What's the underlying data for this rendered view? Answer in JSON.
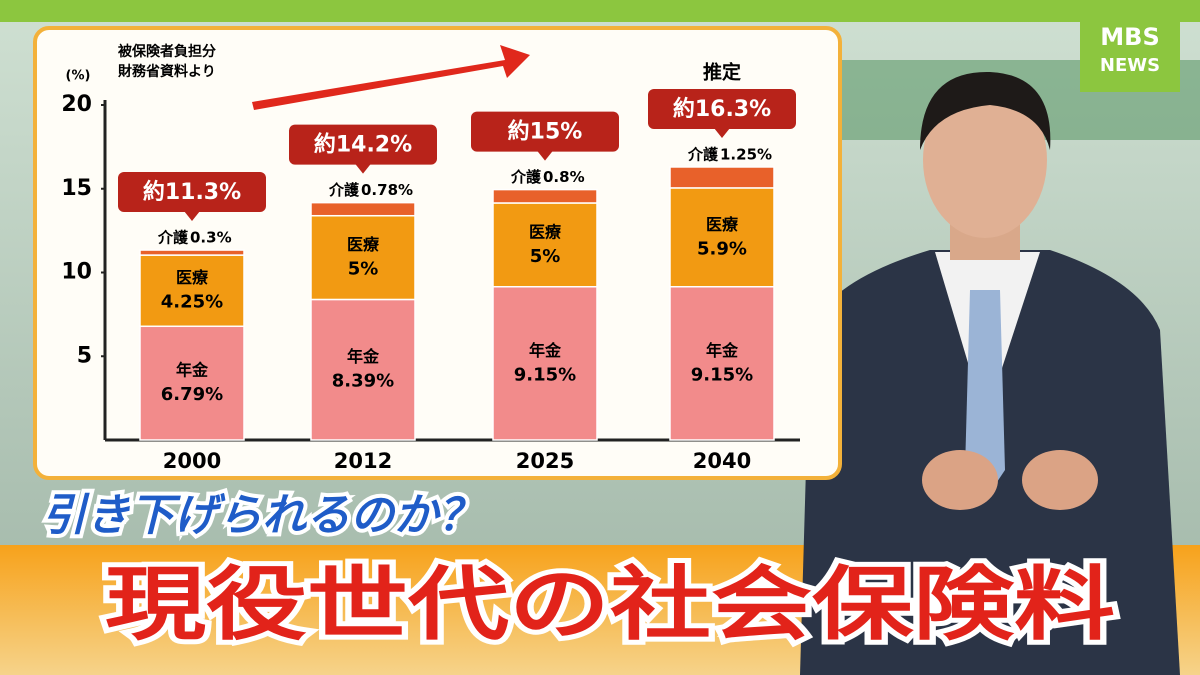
{
  "logo": {
    "brand": "MBS",
    "sub": "NEWS"
  },
  "chart_data": {
    "type": "stacked_bar",
    "unit_label": "(%)",
    "note": [
      "被保険者負担分",
      "財務省資料より"
    ],
    "categories": [
      "2000",
      "2012",
      "2025",
      "2040"
    ],
    "series": [
      {
        "name": "年金",
        "color": "#f28b8b",
        "values": [
          6.79,
          8.39,
          9.15,
          9.15
        ],
        "value_labels": [
          "6.79%",
          "8.39%",
          "9.15%",
          "9.15%"
        ]
      },
      {
        "name": "医療",
        "color": "#f29a12",
        "values": [
          4.25,
          5,
          5,
          5.9
        ],
        "value_labels": [
          "4.25%",
          "5%",
          "5%",
          "5.9%"
        ]
      },
      {
        "name": "介護",
        "color": "#e8612a",
        "values": [
          0.3,
          0.78,
          0.8,
          1.25
        ],
        "value_labels": [
          "0.3%",
          "0.78%",
          "0.8%",
          "1.25%"
        ]
      }
    ],
    "total_labels": [
      "約11.3%",
      "約14.2%",
      "約15%",
      "約16.3%"
    ],
    "estimate_label": "推定",
    "ylim": [
      0,
      20
    ],
    "yticks": [
      5,
      10,
      15,
      20
    ]
  },
  "headline": {
    "question": "引き下げられるのか？",
    "title": "現役世代の社会保険料"
  }
}
